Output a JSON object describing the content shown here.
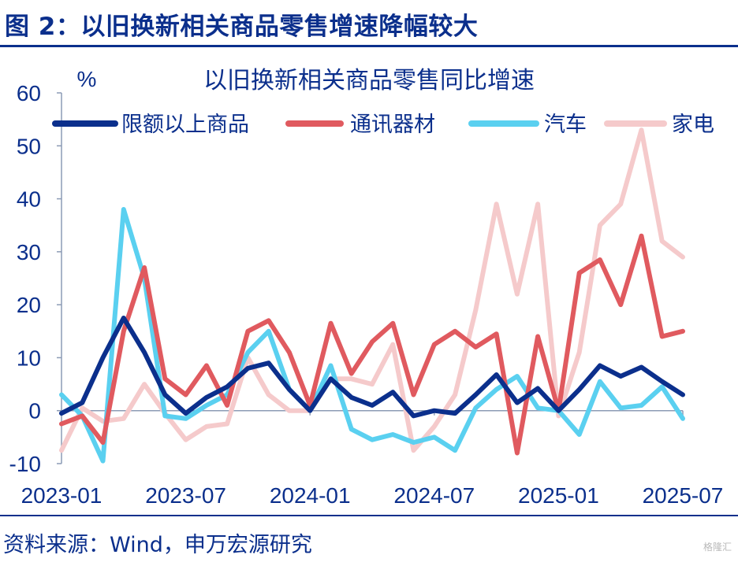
{
  "figure": {
    "title": "图 2：以旧换新相关商品零售增速降幅较大",
    "source": "资料来源：Wind，申万宏源研究",
    "watermark": "格隆汇"
  },
  "chart_data": {
    "type": "line",
    "title": "以旧换新相关商品零售同比增速",
    "ylabel": "%",
    "xlabel": "",
    "ylim": [
      -10,
      60
    ],
    "yticks": [
      -10,
      0,
      10,
      20,
      30,
      40,
      50,
      60
    ],
    "grid": false,
    "legend_position": "top",
    "x": [
      "2023-01",
      "2023-02",
      "2023-03",
      "2023-04",
      "2023-05",
      "2023-06",
      "2023-07",
      "2023-08",
      "2023-09",
      "2023-10",
      "2023-11",
      "2023-12",
      "2024-01",
      "2024-02",
      "2024-03",
      "2024-04",
      "2024-05",
      "2024-06",
      "2024-07",
      "2024-08",
      "2024-09",
      "2024-10",
      "2024-11",
      "2024-12",
      "2025-01",
      "2025-02",
      "2025-03",
      "2025-04",
      "2025-05",
      "2025-06",
      "2025-07"
    ],
    "xtick_labels": [
      "2023-01",
      "2023-07",
      "2024-01",
      "2024-07",
      "2025-01",
      "2025-07"
    ],
    "series": [
      {
        "name": "限额以上商品",
        "color": "#0b2f8c",
        "width": 6,
        "values": [
          -0.5,
          1.5,
          10,
          17.5,
          11,
          3,
          -0.5,
          2.5,
          4.5,
          8,
          9,
          4,
          0,
          6,
          2.5,
          1,
          3.5,
          -1,
          0,
          -0.5,
          3,
          6.8,
          1.5,
          4.2,
          0,
          4,
          8.5,
          6.5,
          8.2,
          5.5,
          3
        ]
      },
      {
        "name": "通讯器材",
        "color": "#e05a5f",
        "width": 6,
        "values": [
          -2.5,
          -1,
          -6,
          15,
          27,
          6,
          3,
          8.5,
          1,
          15,
          17,
          11,
          1,
          16.5,
          7,
          13,
          16.5,
          3,
          12.5,
          15,
          12,
          14.5,
          -8,
          14,
          0,
          26,
          28.5,
          20,
          33,
          14,
          15
        ]
      },
      {
        "name": "汽车",
        "color": "#5ad0f0",
        "width": 6,
        "values": [
          3,
          -1,
          -9.5,
          38,
          25,
          -1,
          -1.5,
          1,
          3,
          11,
          15,
          4,
          0,
          8.5,
          -3.5,
          -5.5,
          -4.5,
          -6,
          -5,
          -7.5,
          0.5,
          4,
          6.5,
          0.5,
          0,
          -4.5,
          5.5,
          0.5,
          1,
          4.5,
          -1.5
        ]
      },
      {
        "name": "家电",
        "color": "#f5cacb",
        "width": 6,
        "values": [
          -7.5,
          0.5,
          -2,
          -1.5,
          5,
          -0.5,
          -5.5,
          -3,
          -2.5,
          10,
          3,
          0,
          0,
          6,
          6,
          5,
          12.5,
          -7.5,
          -3,
          3,
          19,
          39,
          22,
          39,
          -1,
          11,
          35,
          39,
          53,
          32,
          29
        ]
      }
    ]
  }
}
